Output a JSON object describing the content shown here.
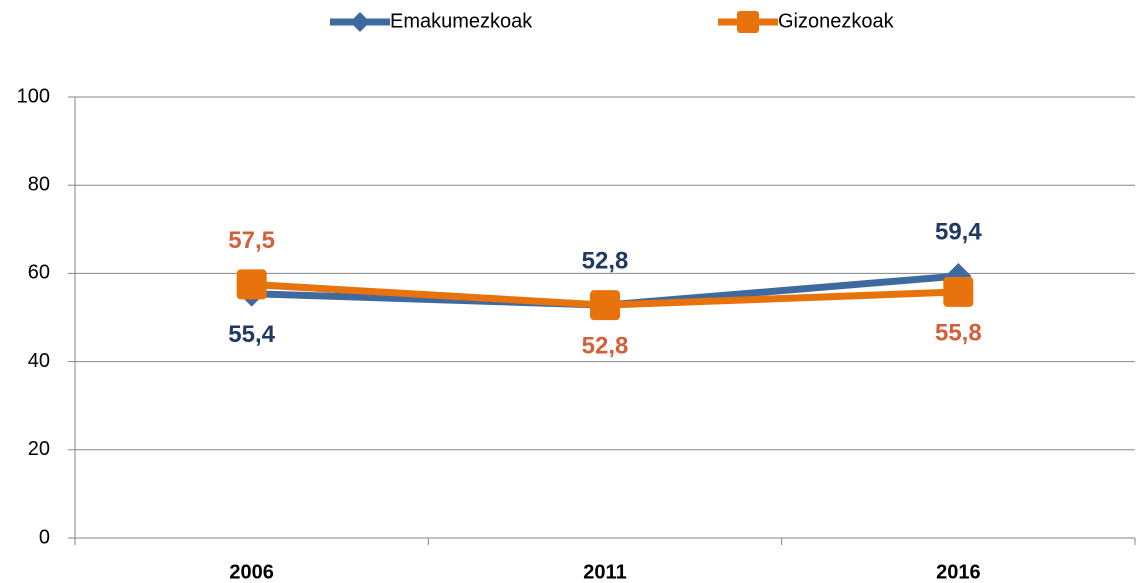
{
  "chart_data": {
    "type": "line",
    "categories": [
      "2006",
      "2011",
      "2016"
    ],
    "series": [
      {
        "name": "Emakumezkoak",
        "color": "#3f6aa0",
        "label_color": "#1f3864",
        "label_position": [
          "below",
          "above",
          "above"
        ],
        "marker": "diamond",
        "values": [
          55.4,
          52.8,
          59.4
        ],
        "value_labels": [
          "55,4",
          "52,8",
          "59,4"
        ]
      },
      {
        "name": "Gizonezkoak",
        "color": "#e8720c",
        "label_color": "#d4603a",
        "label_position": [
          "above",
          "below",
          "below"
        ],
        "marker": "square",
        "values": [
          57.5,
          52.8,
          55.8
        ],
        "value_labels": [
          "57,5",
          "52,8",
          "55,8"
        ]
      }
    ],
    "ylim": [
      0,
      100
    ],
    "yticks": [
      0,
      20,
      40,
      60,
      80,
      100
    ],
    "grid": true,
    "legend": "top"
  }
}
